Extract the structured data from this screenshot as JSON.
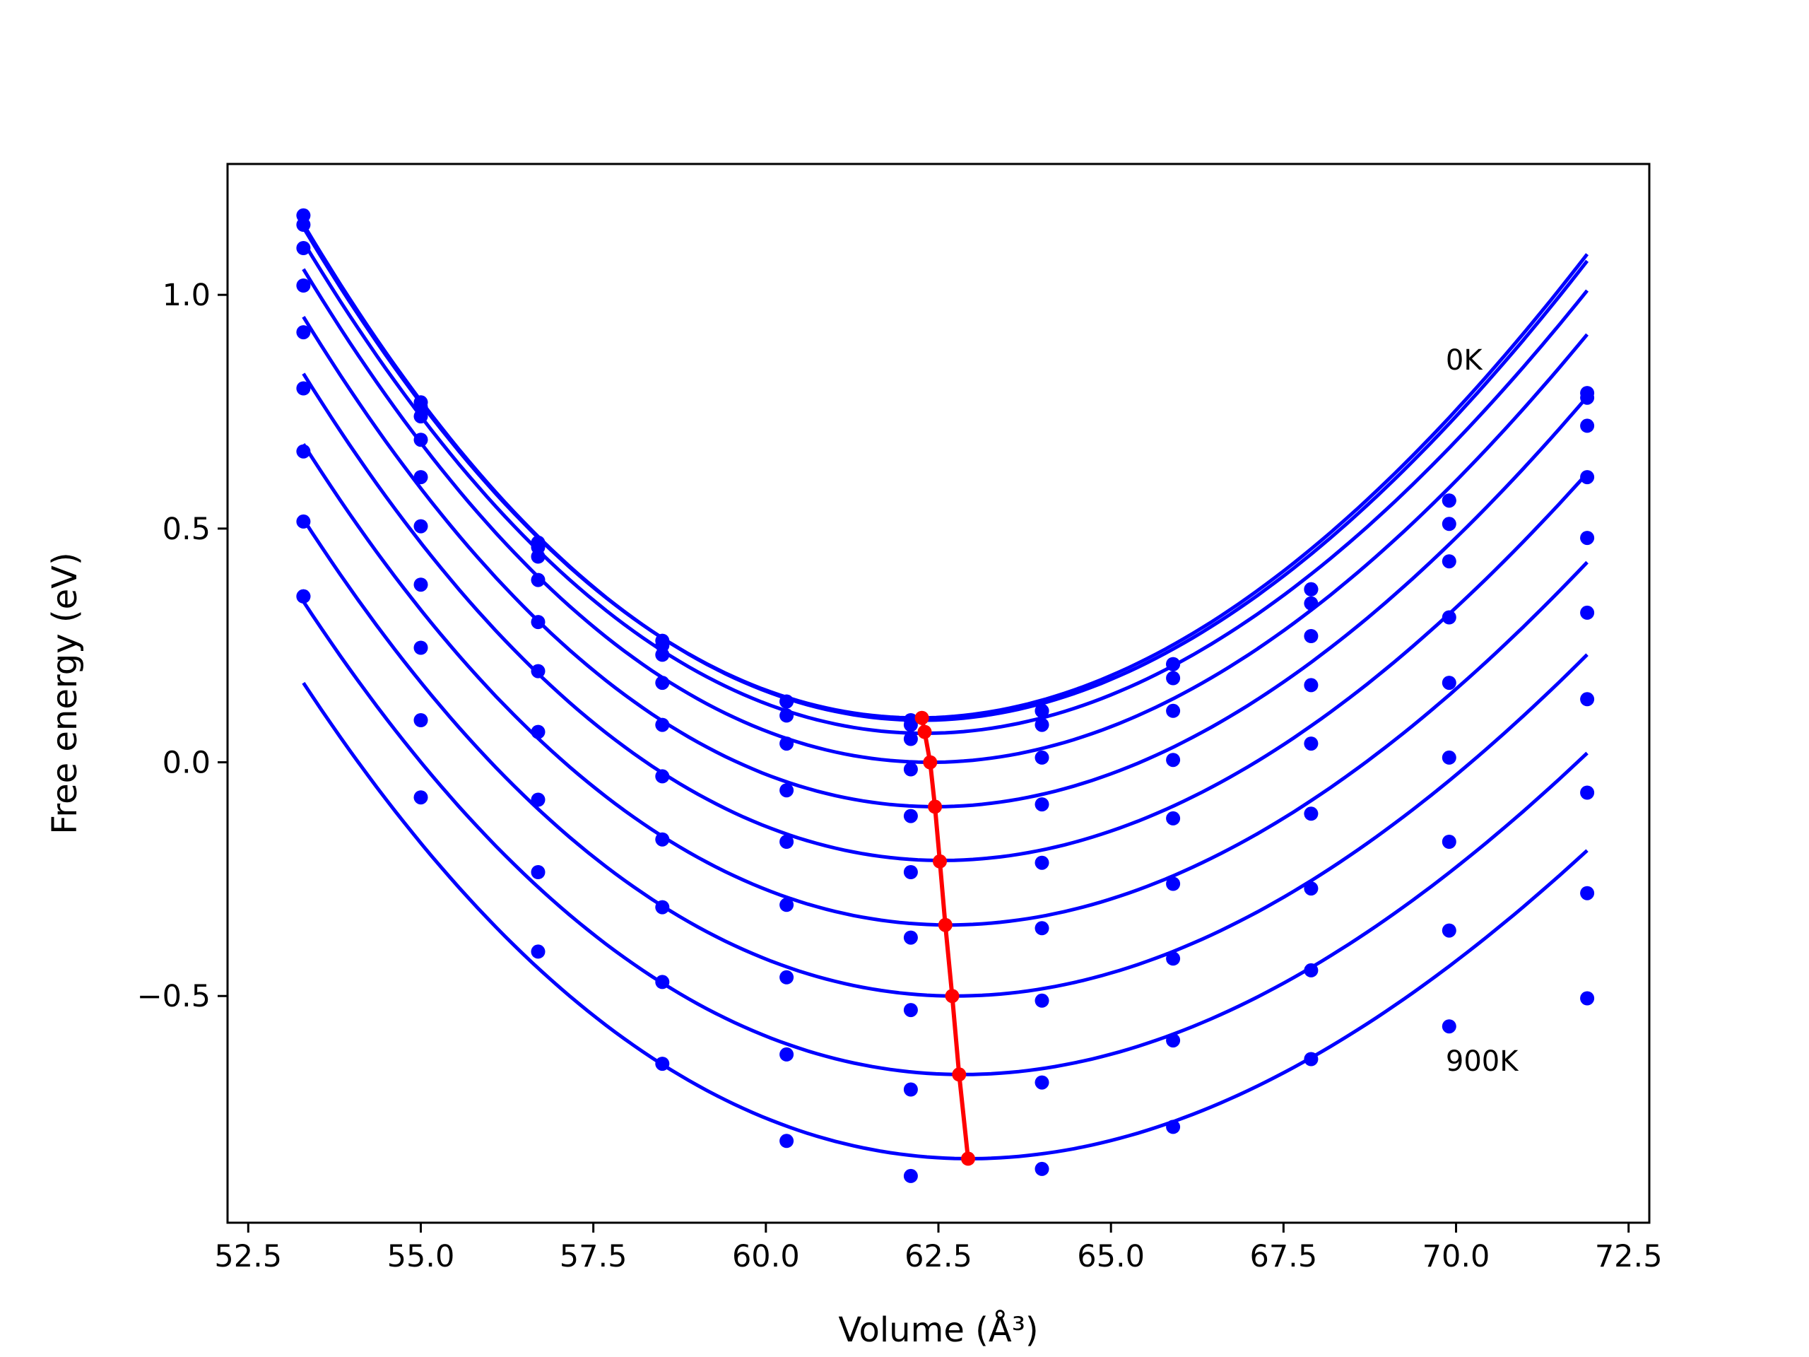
{
  "chart_data": {
    "type": "line",
    "title": "",
    "xlabel": "Volume (Å³)",
    "ylabel": "Free energy (eV)",
    "xlim": [
      52.2,
      72.8
    ],
    "ylim": [
      -0.985,
      1.28
    ],
    "xticks": [
      52.5,
      55.0,
      57.5,
      60.0,
      62.5,
      65.0,
      67.5,
      70.0,
      72.5
    ],
    "xtick_labels": [
      "52.5",
      "55.0",
      "57.5",
      "60.0",
      "62.5",
      "65.0",
      "67.5",
      "70.0",
      "72.5"
    ],
    "yticks": [
      -0.5,
      0.0,
      0.5,
      1.0
    ],
    "ytick_labels": [
      "−0.5",
      "0.0",
      "0.5",
      "1.0"
    ],
    "grid": false,
    "legend": "none",
    "colors": {
      "series": "#0000ff",
      "minima": "#ff0000"
    },
    "annotations": [
      {
        "text": "0K",
        "x": 69.85,
        "y": 0.84
      },
      {
        "text": "900K",
        "x": 69.85,
        "y": -0.66
      }
    ],
    "volumes": [
      53.3,
      55.0,
      56.7,
      58.5,
      60.3,
      62.1,
      64.0,
      65.9,
      67.9,
      69.9,
      71.9
    ],
    "series": [
      {
        "fit": {
          "v0": 62.2,
          "e0": 0.095,
          "a": 0.01195,
          "b": -0.000145
        },
        "values": [
          1.17,
          0.77,
          0.47,
          0.26,
          0.13,
          0.09,
          0.11,
          0.21,
          0.37,
          0.56,
          0.79
        ]
      },
      {
        "fit": {
          "v0": 62.25,
          "e0": 0.09,
          "a": 0.01195,
          "b": -0.000145
        },
        "values": [
          1.15,
          0.76,
          0.46,
          0.25,
          0.13,
          0.08,
          0.11,
          0.21,
          0.37,
          0.56,
          0.78
        ]
      },
      {
        "fit": {
          "v0": 62.3,
          "e0": 0.062,
          "a": 0.01167,
          "b": -0.000145
        },
        "values": [
          1.1,
          0.74,
          0.44,
          0.23,
          0.1,
          0.05,
          0.08,
          0.18,
          0.34,
          0.51,
          0.72
        ]
      },
      {
        "fit": {
          "v0": 62.38,
          "e0": 0.0,
          "a": 0.01148,
          "b": -0.000145
        },
        "values": [
          1.02,
          0.69,
          0.39,
          0.17,
          0.04,
          -0.015,
          0.01,
          0.11,
          0.27,
          0.43,
          0.61
        ]
      },
      {
        "fit": {
          "v0": 62.45,
          "e0": -0.095,
          "a": 0.01119,
          "b": -0.000145
        },
        "values": [
          0.92,
          0.61,
          0.3,
          0.08,
          -0.06,
          -0.115,
          -0.09,
          0.005,
          0.165,
          0.31,
          0.48
        ]
      },
      {
        "fit": {
          "v0": 62.55,
          "e0": -0.21,
          "a": 0.01083,
          "b": -0.000145
        },
        "values": [
          0.8,
          0.505,
          0.195,
          -0.03,
          -0.17,
          -0.235,
          -0.215,
          -0.12,
          0.04,
          0.17,
          0.32
        ]
      },
      {
        "fit": {
          "v0": 62.65,
          "e0": -0.348,
          "a": 0.01041,
          "b": -0.000145
        },
        "values": [
          0.665,
          0.38,
          0.065,
          -0.165,
          -0.305,
          -0.375,
          -0.355,
          -0.26,
          -0.11,
          0.01,
          0.135
        ]
      },
      {
        "fit": {
          "v0": 62.75,
          "e0": -0.5,
          "a": 0.01005,
          "b": -0.000145
        },
        "values": [
          0.515,
          0.245,
          -0.08,
          -0.31,
          -0.46,
          -0.53,
          -0.51,
          -0.42,
          -0.27,
          -0.17,
          -0.065
        ]
      },
      {
        "fit": {
          "v0": 62.85,
          "e0": -0.668,
          "a": 0.00971,
          "b": -0.000145
        },
        "values": [
          0.355,
          0.09,
          -0.235,
          -0.47,
          -0.625,
          -0.7,
          -0.685,
          -0.595,
          -0.445,
          -0.36,
          -0.28
        ]
      },
      {
        "fit": {
          "v0": 62.95,
          "e0": -0.848,
          "a": 0.00953,
          "b": -0.000145
        },
        "values": [
          0.355,
          -0.075,
          -0.405,
          -0.645,
          -0.81,
          -0.885,
          -0.87,
          -0.78,
          -0.635,
          -0.565,
          -0.505
        ]
      }
    ],
    "minima": {
      "x": [
        62.26,
        62.3,
        62.38,
        62.45,
        62.52,
        62.6,
        62.7,
        62.8,
        62.93
      ],
      "y": [
        0.095,
        0.065,
        0.0,
        -0.095,
        -0.212,
        -0.348,
        -0.5,
        -0.668,
        -0.848
      ]
    }
  }
}
